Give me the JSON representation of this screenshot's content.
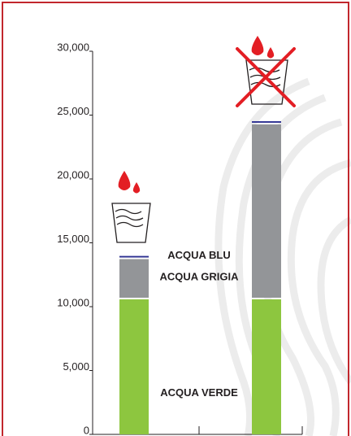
{
  "chart_data": {
    "type": "stacked-bar",
    "categories": [
      null,
      null
    ],
    "series": [
      {
        "name": "ACQUA VERDE",
        "color": "#8dc63f",
        "values": [
          10700,
          10700
        ]
      },
      {
        "name": "ACQUA GRIGIA",
        "color": "#939598",
        "values": [
          3150,
          13700
        ]
      },
      {
        "name": "ACQUA BLU",
        "color": "#2e3192",
        "values": [
          250,
          250
        ]
      }
    ],
    "ylim": [
      0,
      30000
    ],
    "yticks": [
      {
        "value": 0,
        "label": "0"
      },
      {
        "value": 5000,
        "label": "5,000"
      },
      {
        "value": 10000,
        "label": "10,000"
      },
      {
        "value": 15000,
        "label": "15,000"
      },
      {
        "value": 20000,
        "label": "20,000"
      },
      {
        "value": 25000,
        "label": "25,000"
      },
      {
        "value": 30000,
        "label": "30,000"
      }
    ],
    "grid": false
  }
}
